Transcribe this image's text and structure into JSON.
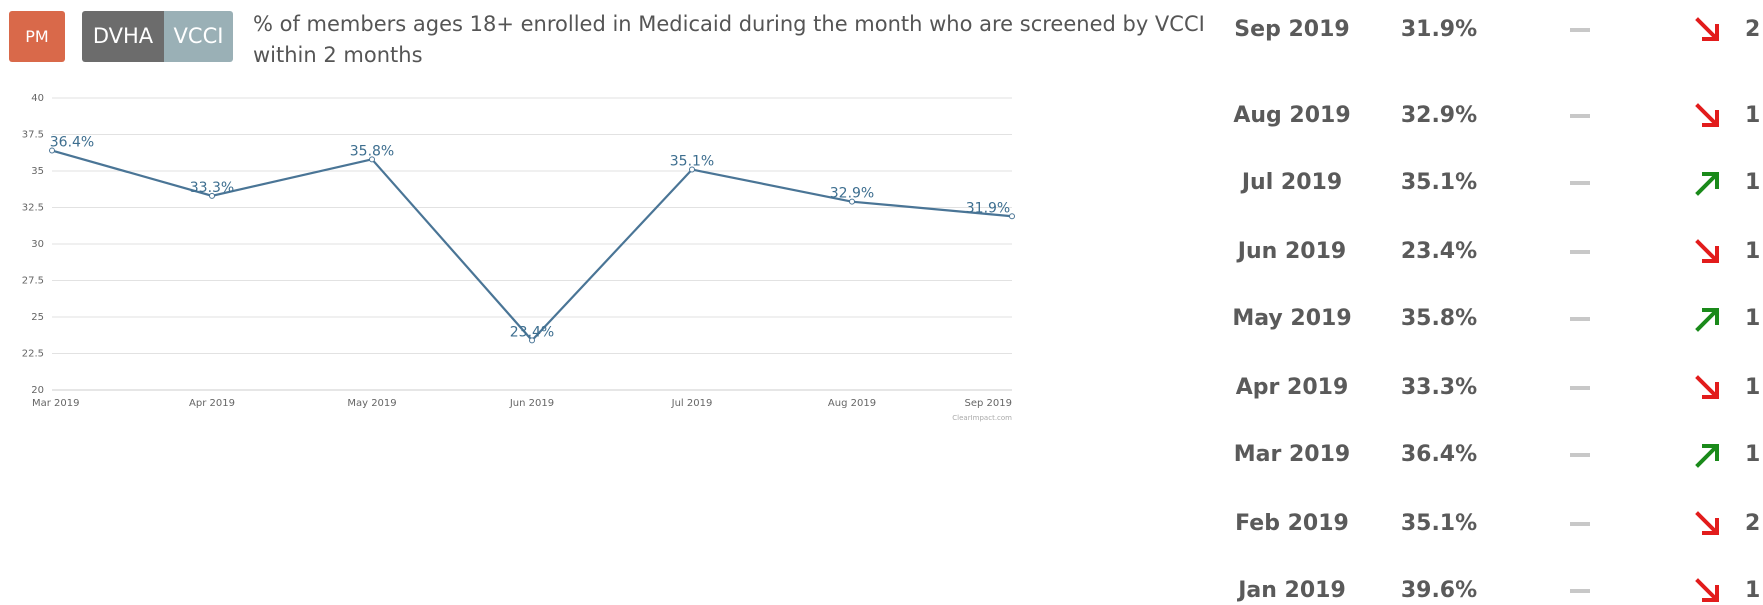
{
  "header": {
    "badge": "PM",
    "tags": [
      "DVHA",
      "VCCI"
    ],
    "title": "% of members ages 18+ enrolled in Medicaid during the month who are screened by VCCI within 2 months"
  },
  "chart_data": {
    "type": "line",
    "categories": [
      "Mar 2019",
      "Apr 2019",
      "May 2019",
      "Jun 2019",
      "Jul 2019",
      "Aug 2019",
      "Sep 2019"
    ],
    "values": [
      36.4,
      33.3,
      35.8,
      23.4,
      35.1,
      32.9,
      31.9
    ],
    "value_labels": [
      "36.4%",
      "33.3%",
      "35.8%",
      "23.4%",
      "35.1%",
      "32.9%",
      "31.9%"
    ],
    "color": "#4a7596",
    "ylim": [
      20,
      40
    ],
    "yticks": [
      20,
      22.5,
      25,
      27.5,
      30,
      32.5,
      35,
      37.5,
      40
    ],
    "grid": true,
    "credit": "ClearImpact.com"
  },
  "table": {
    "rows": [
      {
        "period": "Sep 2019",
        "value": "31.9%",
        "trend": "down",
        "count": "2"
      },
      {
        "period": "Aug 2019",
        "value": "32.9%",
        "trend": "down",
        "count": "1"
      },
      {
        "period": "Jul 2019",
        "value": "35.1%",
        "trend": "up",
        "count": "1"
      },
      {
        "period": "Jun 2019",
        "value": "23.4%",
        "trend": "down",
        "count": "1"
      },
      {
        "period": "May 2019",
        "value": "35.8%",
        "trend": "up",
        "count": "1"
      },
      {
        "period": "Apr 2019",
        "value": "33.3%",
        "trend": "down",
        "count": "1"
      },
      {
        "period": "Mar 2019",
        "value": "36.4%",
        "trend": "up",
        "count": "1"
      },
      {
        "period": "Feb 2019",
        "value": "35.1%",
        "trend": "down",
        "count": "2"
      },
      {
        "period": "Jan 2019",
        "value": "39.6%",
        "trend": "down",
        "count": "1"
      }
    ]
  }
}
